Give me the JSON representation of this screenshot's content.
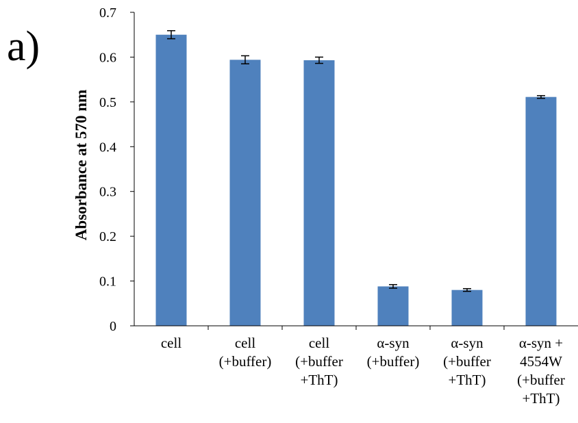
{
  "panel_label": "a)",
  "chart_data": {
    "type": "bar",
    "title": "",
    "xlabel": "",
    "ylabel": "Absorbance at 570 nm",
    "ylim": [
      0,
      0.7
    ],
    "y_ticks": [
      "0",
      "0.1",
      "0.2",
      "0.3",
      "0.4",
      "0.5",
      "0.6",
      "0.7"
    ],
    "categories": [
      [
        "cell"
      ],
      [
        "cell",
        "(+buffer)"
      ],
      [
        "cell",
        "(+buffer",
        "+ThT)"
      ],
      [
        "α-syn",
        "(+buffer)"
      ],
      [
        "α-syn",
        "(+buffer",
        "+ThT)"
      ],
      [
        "α-syn +",
        "4554W",
        "(+buffer",
        "+ThT)"
      ]
    ],
    "values": [
      0.65,
      0.594,
      0.593,
      0.088,
      0.08,
      0.511
    ],
    "errors": [
      0.009,
      0.009,
      0.007,
      0.004,
      0.003,
      0.003
    ],
    "bar_color": "#4f81bd",
    "legend": "none",
    "grid": false
  }
}
